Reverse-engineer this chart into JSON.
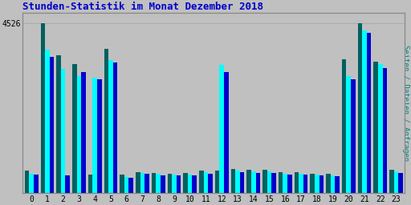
{
  "title": "Stunden-Statistik im Monat Dezember 2018",
  "ylabel": "Seiten / Dateien / Anfragen",
  "hours": [
    0,
    1,
    2,
    3,
    4,
    5,
    6,
    7,
    8,
    9,
    10,
    11,
    12,
    13,
    14,
    15,
    16,
    17,
    18,
    19,
    20,
    21,
    22,
    23
  ],
  "ytick_label": "4526",
  "ytick_val": 4526,
  "background_color": "#c0c0c0",
  "title_color": "#0000cc",
  "ylabel_color": "#008080",
  "bar_color_teal": "#006060",
  "bar_color_cyan": "#00ffff",
  "bar_color_blue": "#0000cc",
  "grid_color": "#aaaaaa",
  "teal_vals": [
    590,
    4526,
    3680,
    3430,
    500,
    3840,
    490,
    555,
    540,
    510,
    535,
    595,
    595,
    635,
    615,
    625,
    565,
    560,
    525,
    505,
    3560,
    4526,
    3510,
    625
  ],
  "cyan_vals": [
    520,
    3820,
    3320,
    3120,
    3080,
    3540,
    430,
    535,
    505,
    490,
    490,
    550,
    3420,
    590,
    570,
    570,
    520,
    520,
    495,
    465,
    3120,
    4330,
    3430,
    570
  ],
  "blue_vals": [
    500,
    3630,
    470,
    3230,
    3040,
    3480,
    415,
    505,
    480,
    470,
    470,
    515,
    3230,
    555,
    545,
    545,
    495,
    490,
    462,
    442,
    3040,
    4280,
    3340,
    540
  ],
  "ylim": [
    0,
    4800
  ],
  "bar_width": 0.28,
  "figsize": [
    5.12,
    2.56
  ],
  "dpi": 100
}
